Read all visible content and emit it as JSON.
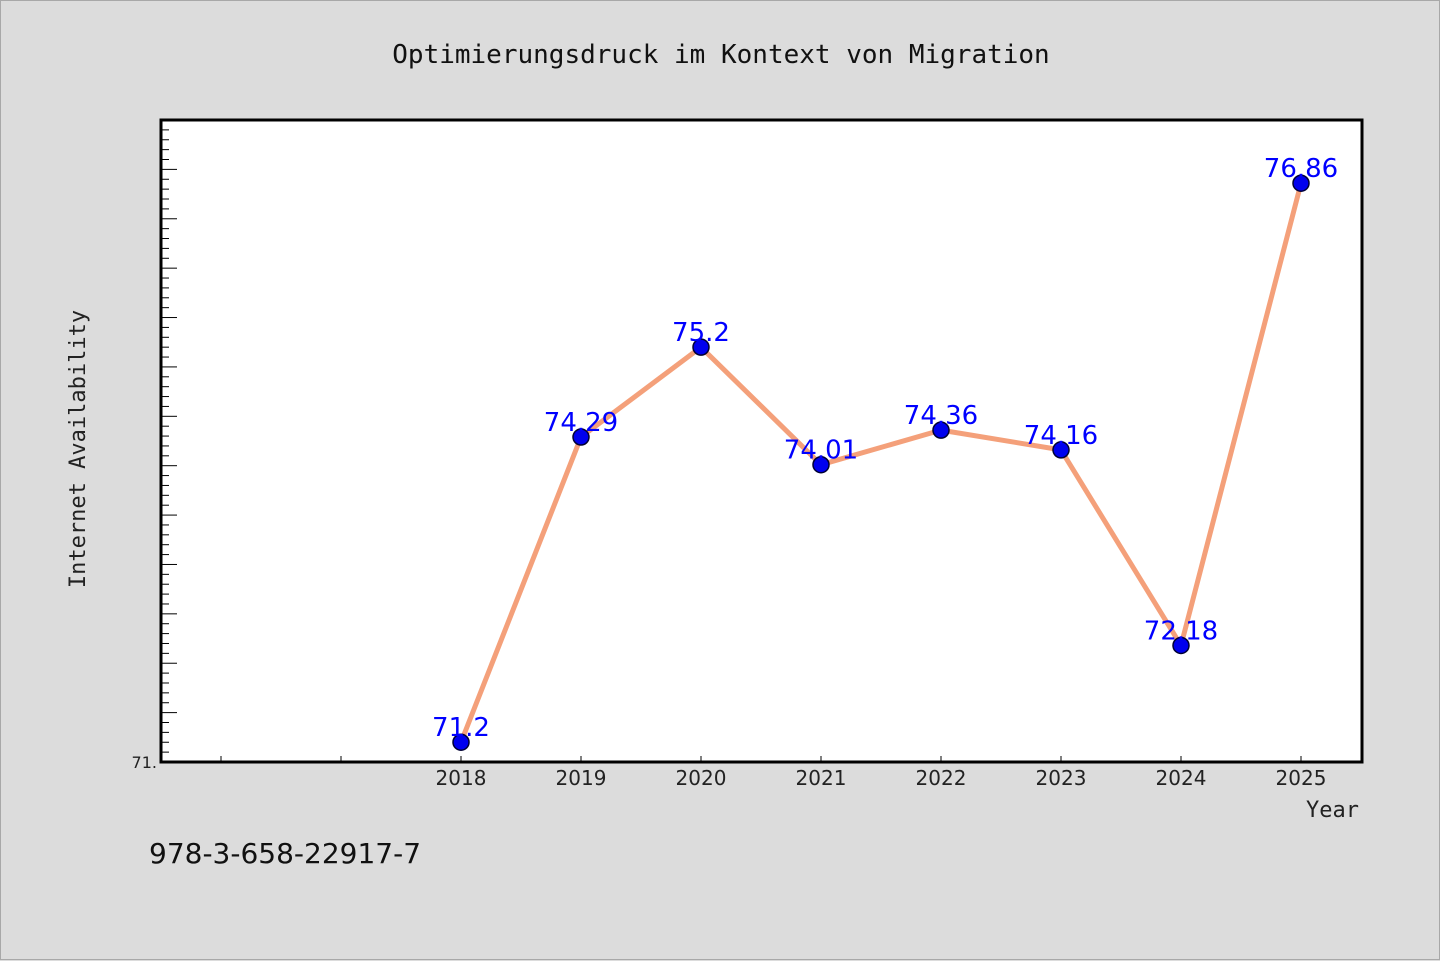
{
  "chart_data": {
    "type": "line",
    "title": "Optimierungsdruck im Kontext von Migration",
    "xlabel": "Year",
    "ylabel": "Internet Availability",
    "categories": [
      "2018",
      "2019",
      "2020",
      "2021",
      "2022",
      "2023",
      "2024",
      "2025"
    ],
    "values": [
      71.2,
      74.29,
      75.2,
      74.01,
      74.36,
      74.16,
      72.18,
      76.86
    ],
    "data_labels": [
      "71.2",
      "74.29",
      "75.2",
      "74.01",
      "74.36",
      "74.16",
      "72.18",
      "76.86"
    ],
    "ylim": [
      71,
      77.5
    ],
    "y_tick_labels": [
      {
        "value": 71,
        "label": "71."
      }
    ],
    "grid": false,
    "colors": {
      "line": "#f4a07a",
      "marker": "#0000ee",
      "data_label": "#0000ff",
      "plot_background": "#ffffff",
      "page_background": "#dcdcdc"
    }
  },
  "footer": {
    "text": "978-3-658-22917-7"
  }
}
